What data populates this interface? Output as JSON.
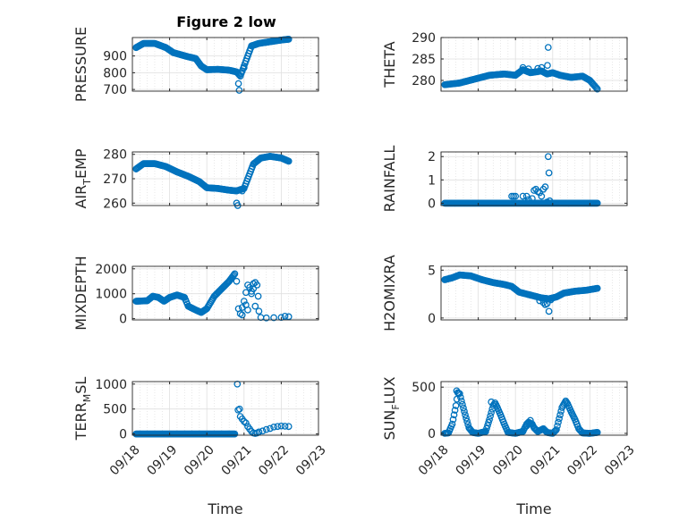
{
  "figure": {
    "title": "Figure 2 low",
    "marker_color": "#0072BD",
    "grid": "dotted"
  },
  "x_tick_labels": [
    "09/18",
    "09/19",
    "09/20",
    "09/21",
    "09/22",
    "09/23"
  ],
  "chart_data": [
    {
      "type": "scatter",
      "id": "pressure",
      "title": "Figure 2 low",
      "ylabel": "PRESSURE",
      "xlabel": "",
      "ylim": [
        690,
        1010
      ],
      "yticks": [
        700,
        800,
        900
      ],
      "ytick_labels": [
        "700",
        "800",
        "900"
      ],
      "xlim": [
        0,
        5
      ],
      "x_ticks": [
        0,
        1,
        2,
        3,
        4,
        5
      ],
      "grid": true,
      "knots": [
        [
          0.1,
          950
        ],
        [
          0.3,
          975
        ],
        [
          0.6,
          975
        ],
        [
          0.9,
          950
        ],
        [
          1.1,
          920
        ],
        [
          1.5,
          895
        ],
        [
          1.7,
          885
        ],
        [
          1.85,
          840
        ],
        [
          2.0,
          818
        ],
        [
          2.3,
          820
        ],
        [
          2.6,
          815
        ],
        [
          2.8,
          805
        ],
        [
          2.9,
          780
        ],
        [
          3.0,
          840
        ],
        [
          3.1,
          900
        ],
        [
          3.2,
          960
        ],
        [
          3.4,
          975
        ],
        [
          3.7,
          985
        ],
        [
          4.0,
          995
        ],
        [
          4.2,
          1000
        ]
      ],
      "extra_points": [
        [
          2.85,
          735
        ],
        [
          2.87,
          695
        ],
        [
          2.95,
          810
        ],
        [
          3.0,
          830
        ]
      ]
    },
    {
      "type": "scatter",
      "id": "theta",
      "ylabel": "THETA",
      "xlabel": "",
      "ylim": [
        277.5,
        290
      ],
      "yticks": [
        280,
        285,
        290
      ],
      "ytick_labels": [
        "280",
        "285",
        "290"
      ],
      "xlim": [
        0,
        5
      ],
      "x_ticks": [
        0,
        1,
        2,
        3,
        4,
        5
      ],
      "grid": true,
      "knots": [
        [
          0.1,
          279
        ],
        [
          0.5,
          279.4
        ],
        [
          0.9,
          280.3
        ],
        [
          1.3,
          281.2
        ],
        [
          1.7,
          281.5
        ],
        [
          2.0,
          281.2
        ],
        [
          2.2,
          282.5
        ],
        [
          2.4,
          281.8
        ],
        [
          2.7,
          282.2
        ],
        [
          2.85,
          281.5
        ],
        [
          3.0,
          281.8
        ],
        [
          3.2,
          281.2
        ],
        [
          3.5,
          280.7
        ],
        [
          3.8,
          281.0
        ],
        [
          4.0,
          280
        ],
        [
          4.2,
          278
        ]
      ],
      "extra_points": [
        [
          2.88,
          287.7
        ],
        [
          2.86,
          283.5
        ],
        [
          2.7,
          283
        ],
        [
          2.6,
          282.8
        ],
        [
          2.35,
          282.7
        ],
        [
          2.2,
          283
        ]
      ]
    },
    {
      "type": "scatter",
      "id": "air_temp",
      "ylabel_main": "AIR",
      "ylabel_sub": "T",
      "ylabel_rest": "EMP",
      "xlabel": "",
      "ylim": [
        259,
        281
      ],
      "yticks": [
        260,
        270,
        280
      ],
      "ytick_labels": [
        "260",
        "270",
        "280"
      ],
      "xlim": [
        0,
        5
      ],
      "x_ticks": [
        0,
        1,
        2,
        3,
        4,
        5
      ],
      "grid": true,
      "knots": [
        [
          0.1,
          274
        ],
        [
          0.3,
          276.2
        ],
        [
          0.6,
          276.2
        ],
        [
          0.9,
          275
        ],
        [
          1.2,
          272.8
        ],
        [
          1.5,
          271
        ],
        [
          1.8,
          268.8
        ],
        [
          2.0,
          266.3
        ],
        [
          2.3,
          266.0
        ],
        [
          2.6,
          265.3
        ],
        [
          2.8,
          265
        ],
        [
          3.0,
          266
        ],
        [
          3.1,
          270
        ],
        [
          3.25,
          276
        ],
        [
          3.45,
          278.5
        ],
        [
          3.7,
          279.2
        ],
        [
          4.0,
          278.5
        ],
        [
          4.2,
          277.2
        ]
      ],
      "extra_points": [
        [
          2.83,
          259
        ],
        [
          2.8,
          260
        ],
        [
          2.9,
          265.5
        ],
        [
          2.95,
          265
        ]
      ]
    },
    {
      "type": "scatter",
      "id": "rainfall",
      "ylabel": "RAINFALL",
      "xlabel": "",
      "ylim": [
        -0.1,
        2.2
      ],
      "yticks": [
        0,
        1,
        2
      ],
      "ytick_labels": [
        "0",
        "1",
        "2"
      ],
      "xlim": [
        0,
        5
      ],
      "x_ticks": [
        0,
        1,
        2,
        3,
        4,
        5
      ],
      "grid": true,
      "knots": [
        [
          0.1,
          0
        ],
        [
          4.2,
          0
        ]
      ],
      "extra_points": [
        [
          1.9,
          0.3
        ],
        [
          1.95,
          0.3
        ],
        [
          2.0,
          0.3
        ],
        [
          2.2,
          0.3
        ],
        [
          2.3,
          0.3
        ],
        [
          2.35,
          0.15
        ],
        [
          2.45,
          0.2
        ],
        [
          2.5,
          0.55
        ],
        [
          2.55,
          0.6
        ],
        [
          2.6,
          0.5
        ],
        [
          2.65,
          0.45
        ],
        [
          2.7,
          0.3
        ],
        [
          2.75,
          0.6
        ],
        [
          2.8,
          0.7
        ],
        [
          2.85,
          0.05
        ],
        [
          2.88,
          2.0
        ],
        [
          2.9,
          1.3
        ],
        [
          2.92,
          0.1
        ]
      ]
    },
    {
      "type": "scatter",
      "id": "mixdepth",
      "ylabel": "MIXDEPTH",
      "xlabel": "",
      "ylim": [
        -50,
        2100
      ],
      "yticks": [
        0,
        1000,
        2000
      ],
      "ytick_labels": [
        "0",
        "1000",
        "2000"
      ],
      "xlim": [
        0,
        5
      ],
      "x_ticks": [
        0,
        1,
        2,
        3,
        4,
        5
      ],
      "grid": true,
      "knots": [
        [
          0.1,
          700
        ],
        [
          0.4,
          720
        ],
        [
          0.55,
          900
        ],
        [
          0.7,
          850
        ],
        [
          0.85,
          700
        ],
        [
          1.0,
          850
        ],
        [
          1.2,
          950
        ],
        [
          1.4,
          850
        ],
        [
          1.5,
          500
        ],
        [
          1.7,
          350
        ],
        [
          1.85,
          250
        ],
        [
          2.0,
          400
        ],
        [
          2.2,
          900
        ],
        [
          2.4,
          1200
        ],
        [
          2.6,
          1500
        ],
        [
          2.7,
          1700
        ],
        [
          2.75,
          1800
        ]
      ],
      "extra_points": [
        [
          2.8,
          1500
        ],
        [
          2.85,
          400
        ],
        [
          2.9,
          200
        ],
        [
          2.95,
          150
        ],
        [
          3.0,
          700
        ],
        [
          3.05,
          1050
        ],
        [
          3.1,
          1350
        ],
        [
          3.15,
          1250
        ],
        [
          3.2,
          1100
        ],
        [
          3.25,
          1400
        ],
        [
          3.3,
          1450
        ],
        [
          3.35,
          1350
        ],
        [
          3.38,
          900
        ],
        [
          3.4,
          300
        ],
        [
          3.45,
          50
        ],
        [
          3.6,
          30
        ],
        [
          3.8,
          40
        ],
        [
          4.0,
          50
        ],
        [
          4.1,
          100
        ],
        [
          4.2,
          80
        ],
        [
          3.2,
          1000
        ],
        [
          3.25,
          1200
        ],
        [
          3.3,
          500
        ],
        [
          3.1,
          350
        ],
        [
          2.95,
          450
        ],
        [
          3.05,
          550
        ]
      ]
    },
    {
      "type": "scatter",
      "id": "h2omixra",
      "ylabel": "H2OMIXRA",
      "xlabel": "",
      "ylim": [
        -0.2,
        5.4
      ],
      "yticks": [
        0,
        5
      ],
      "ytick_labels": [
        "0",
        "5"
      ],
      "xlim": [
        0,
        5
      ],
      "x_ticks": [
        0,
        1,
        2,
        3,
        4,
        5
      ],
      "grid": true,
      "knots": [
        [
          0.1,
          4.0
        ],
        [
          0.3,
          4.2
        ],
        [
          0.5,
          4.5
        ],
        [
          0.8,
          4.4
        ],
        [
          1.1,
          4.0
        ],
        [
          1.4,
          3.7
        ],
        [
          1.7,
          3.5
        ],
        [
          1.9,
          3.3
        ],
        [
          2.1,
          2.7
        ],
        [
          2.4,
          2.4
        ],
        [
          2.7,
          2.1
        ],
        [
          2.9,
          2.0
        ],
        [
          3.1,
          2.2
        ],
        [
          3.3,
          2.6
        ],
        [
          3.6,
          2.8
        ],
        [
          3.9,
          2.9
        ],
        [
          4.2,
          3.1
        ]
      ],
      "extra_points": [
        [
          2.9,
          0.7
        ],
        [
          2.85,
          1.5
        ],
        [
          2.75,
          1.6
        ],
        [
          2.65,
          1.8
        ],
        [
          2.8,
          1.4
        ],
        [
          2.95,
          1.9
        ]
      ]
    },
    {
      "type": "scatter",
      "id": "terr_msl",
      "ylabel_main": "TERR",
      "ylabel_sub": "M",
      "ylabel_rest": "SL",
      "xlabel": "Time",
      "ylim": [
        -25,
        1050
      ],
      "yticks": [
        0,
        500,
        1000
      ],
      "ytick_labels": [
        "0",
        "500",
        "1000"
      ],
      "xlim": [
        0,
        5
      ],
      "x_ticks": [
        0,
        1,
        2,
        3,
        4,
        5
      ],
      "x_tick_labels": [
        "09/18",
        "09/19",
        "09/20",
        "09/21",
        "09/22",
        "09/23"
      ],
      "grid": true,
      "knots": [
        [
          0.1,
          0
        ],
        [
          2.75,
          0
        ]
      ],
      "extra_points": [
        [
          2.82,
          1000
        ],
        [
          2.84,
          480
        ],
        [
          2.88,
          500
        ],
        [
          2.9,
          350
        ],
        [
          2.95,
          300
        ],
        [
          3.0,
          250
        ],
        [
          3.05,
          220
        ],
        [
          3.1,
          150
        ],
        [
          3.15,
          100
        ],
        [
          3.2,
          50
        ],
        [
          3.25,
          20
        ],
        [
          3.3,
          10
        ],
        [
          3.35,
          20
        ],
        [
          3.4,
          40
        ],
        [
          3.5,
          60
        ],
        [
          3.6,
          90
        ],
        [
          3.7,
          110
        ],
        [
          3.8,
          140
        ],
        [
          3.9,
          150
        ],
        [
          4.0,
          160
        ],
        [
          4.1,
          155
        ],
        [
          4.2,
          150
        ]
      ]
    },
    {
      "type": "scatter",
      "id": "sun_flux",
      "ylabel_main": "SUN",
      "ylabel_sub": "F",
      "ylabel_rest": "LUX",
      "xlabel": "Time",
      "ylim": [
        -20,
        560
      ],
      "yticks": [
        0,
        500
      ],
      "ytick_labels": [
        "0",
        "500"
      ],
      "xlim": [
        0,
        5
      ],
      "x_ticks": [
        0,
        1,
        2,
        3,
        4,
        5
      ],
      "x_tick_labels": [
        "09/18",
        "09/19",
        "09/20",
        "09/21",
        "09/22",
        "09/23"
      ],
      "grid": true,
      "knots": [
        [
          0.1,
          0
        ],
        [
          0.2,
          5
        ],
        [
          0.3,
          100
        ],
        [
          0.4,
          300
        ],
        [
          0.45,
          440
        ],
        [
          0.5,
          430
        ],
        [
          0.55,
          350
        ],
        [
          0.65,
          200
        ],
        [
          0.75,
          60
        ],
        [
          0.85,
          10
        ],
        [
          1.0,
          0
        ],
        [
          1.2,
          20
        ],
        [
          1.3,
          150
        ],
        [
          1.4,
          300
        ],
        [
          1.45,
          330
        ],
        [
          1.5,
          290
        ],
        [
          1.6,
          200
        ],
        [
          1.7,
          100
        ],
        [
          1.8,
          10
        ],
        [
          2.0,
          0
        ],
        [
          2.2,
          20
        ],
        [
          2.3,
          100
        ],
        [
          2.35,
          120
        ],
        [
          2.45,
          100
        ],
        [
          2.5,
          60
        ],
        [
          2.6,
          20
        ],
        [
          2.75,
          50
        ],
        [
          2.85,
          10
        ],
        [
          3.0,
          0
        ],
        [
          3.1,
          40
        ],
        [
          3.25,
          280
        ],
        [
          3.35,
          350
        ],
        [
          3.4,
          320
        ],
        [
          3.5,
          230
        ],
        [
          3.6,
          150
        ],
        [
          3.7,
          50
        ],
        [
          3.8,
          5
        ],
        [
          4.0,
          0
        ],
        [
          4.2,
          10
        ]
      ],
      "extra_points": [
        [
          2.3,
          80
        ],
        [
          2.4,
          140
        ],
        [
          1.35,
          340
        ],
        [
          0.42,
          460
        ]
      ]
    }
  ]
}
